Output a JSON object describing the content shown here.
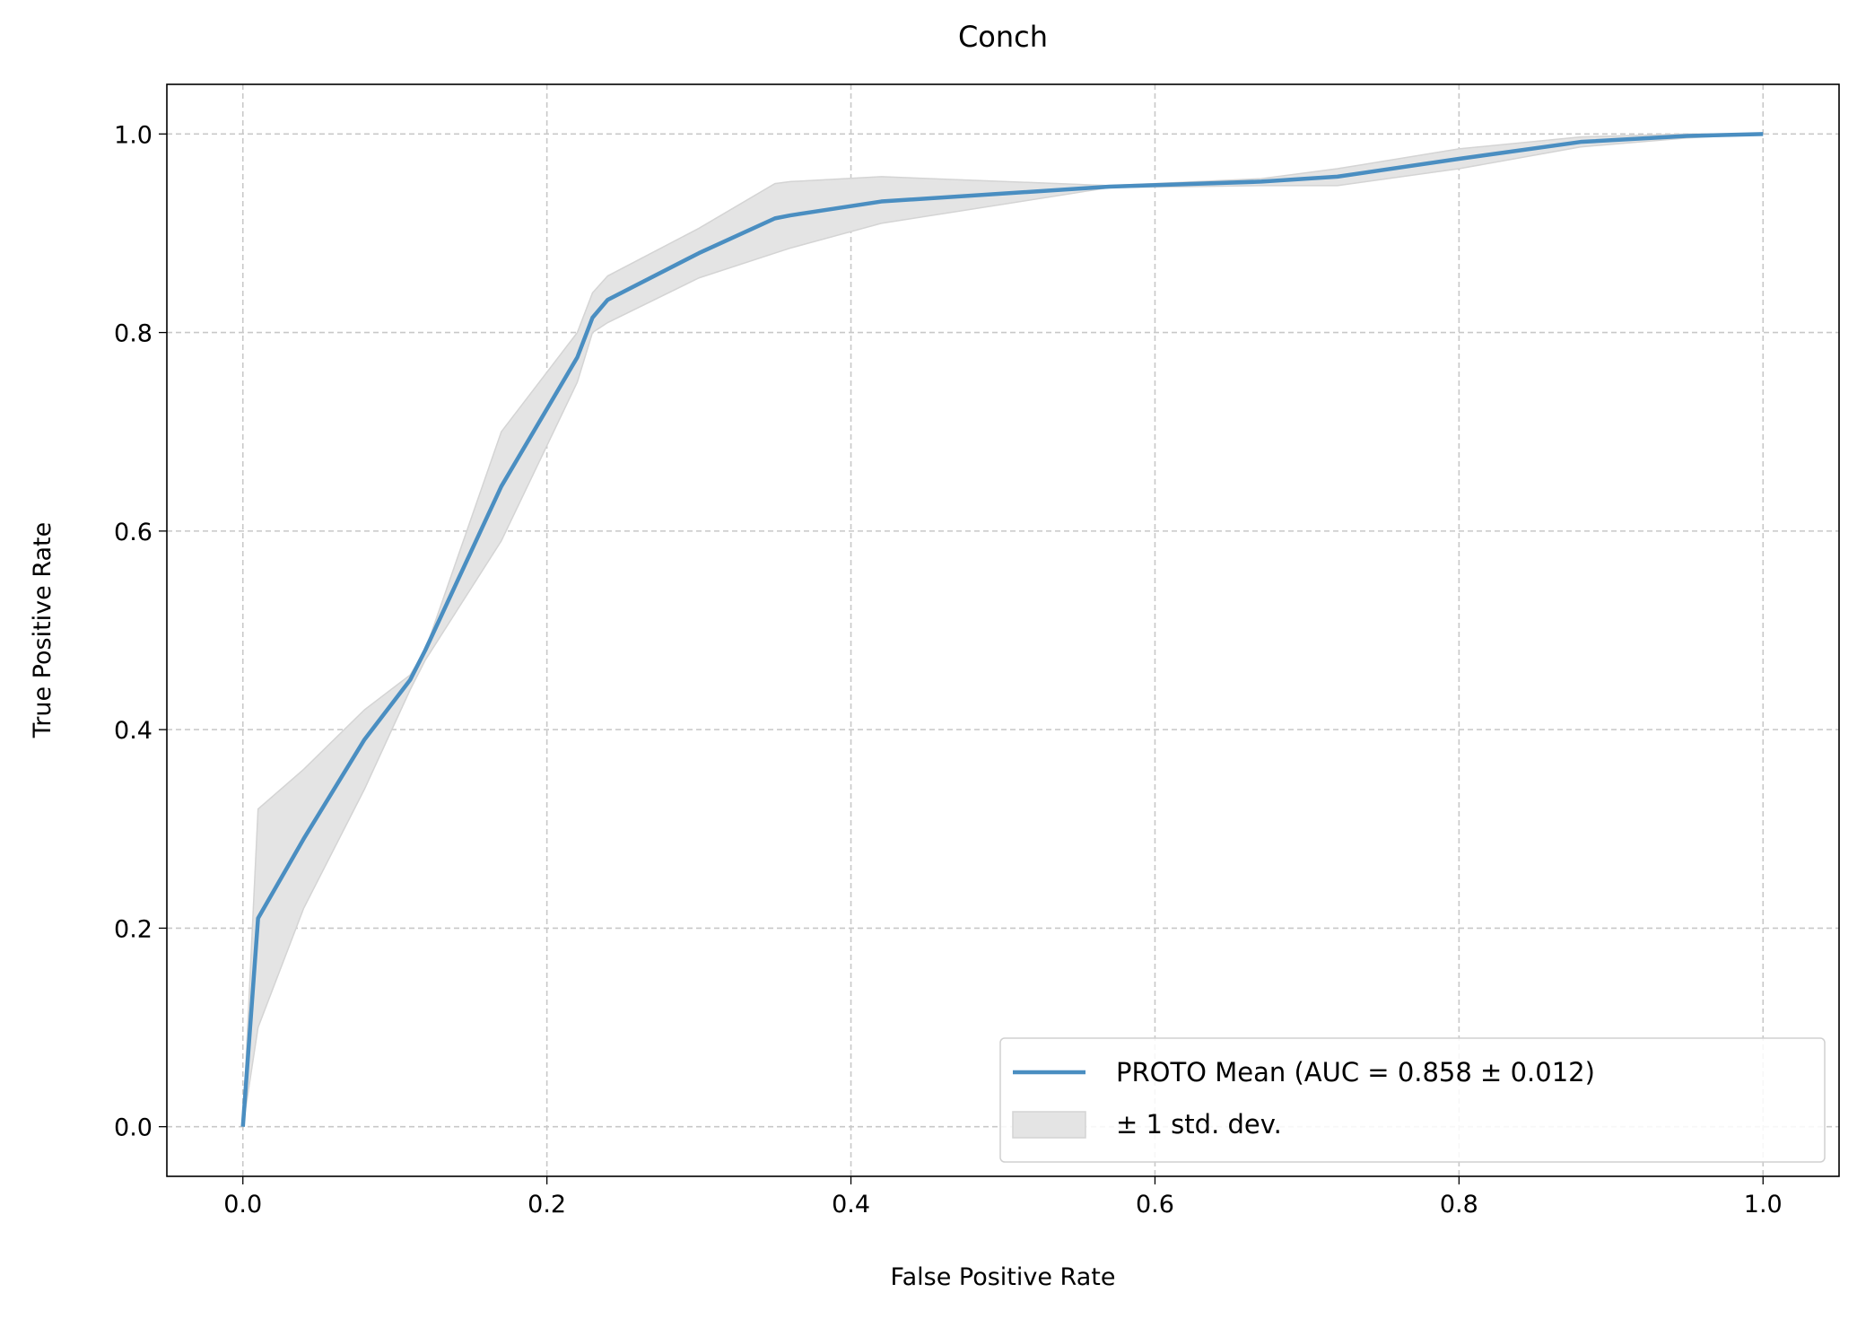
{
  "chart_data": {
    "type": "line",
    "title": "Conch",
    "x_label": "False Positive Rate",
    "y_label": "True Positive Rate",
    "x": [
      0,
      0.01,
      0.04,
      0.08,
      0.11,
      0.12,
      0.17,
      0.22,
      0.23,
      0.24,
      0.3,
      0.35,
      0.36,
      0.42,
      0.57,
      0.67,
      0.72,
      0.8,
      0.88,
      0.95,
      1.0
    ],
    "series": [
      {
        "name": "PROTO Mean (AUC = 0.858 ± 0.012)",
        "color": "#4a8ec1",
        "values": [
          0,
          0.21,
          0.29,
          0.39,
          0.45,
          0.48,
          0.645,
          0.775,
          0.815,
          0.833,
          0.88,
          0.915,
          0.918,
          0.932,
          0.947,
          0.952,
          0.957,
          0.975,
          0.992,
          0.998,
          1.0
        ]
      }
    ],
    "band": {
      "name": "± 1 std. dev.",
      "color": "#e4e4e4",
      "upper": [
        0,
        0.32,
        0.36,
        0.42,
        0.455,
        0.48,
        0.7,
        0.8,
        0.84,
        0.857,
        0.905,
        0.95,
        0.952,
        0.957,
        0.948,
        0.955,
        0.965,
        0.985,
        0.997,
        1.0,
        1.0
      ],
      "lower": [
        0,
        0.1,
        0.22,
        0.34,
        0.44,
        0.47,
        0.59,
        0.75,
        0.8,
        0.81,
        0.855,
        0.88,
        0.885,
        0.91,
        0.946,
        0.948,
        0.948,
        0.965,
        0.987,
        0.996,
        1.0
      ]
    },
    "xlim": [
      -0.05,
      1.05
    ],
    "ylim": [
      -0.05,
      1.05
    ],
    "xticks": [
      {
        "value": 0,
        "label": "0.0"
      },
      0.2,
      0.4,
      0.6,
      0.8,
      {
        "value": 1,
        "label": "1.0"
      }
    ],
    "yticks": [
      {
        "value": 0,
        "label": "0.0"
      },
      0.2,
      0.4,
      0.6,
      0.8,
      {
        "value": 1,
        "label": "1.0"
      }
    ],
    "grid": true,
    "legend": "lower right"
  }
}
